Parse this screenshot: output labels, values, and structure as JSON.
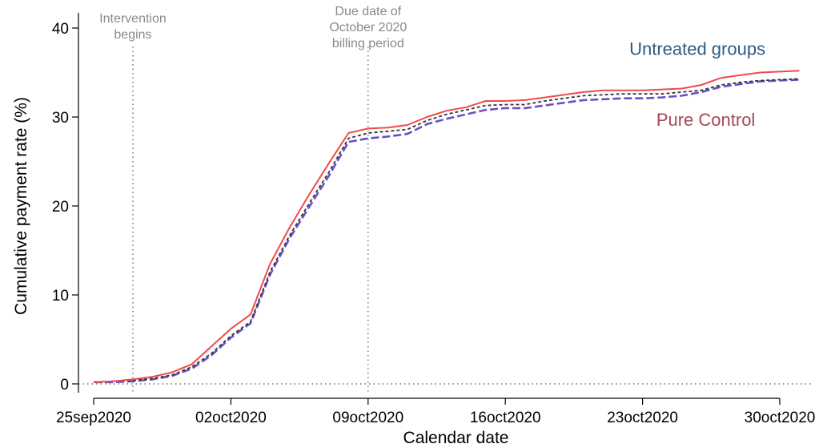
{
  "chart_data": {
    "type": "line",
    "xlabel": "Calendar date",
    "ylabel": "Cumulative payment rate (%)",
    "xlim": [
      "2020-09-25",
      "2020-10-31"
    ],
    "ylim": [
      0,
      40
    ],
    "x_ticks": [
      "2020-09-25",
      "2020-10-02",
      "2020-10-09",
      "2020-10-16",
      "2020-10-23",
      "2020-10-30"
    ],
    "x_tick_labels": [
      "25sep2020",
      "02oct2020",
      "09oct2020",
      "16oct2020",
      "23oct2020",
      "30oct2020"
    ],
    "y_ticks": [
      0,
      10,
      20,
      30,
      40
    ],
    "y_tick_labels": [
      "0",
      "10",
      "20",
      "30",
      "40"
    ],
    "grid": false,
    "reference_lines": [
      {
        "axis": "x",
        "x": "2020-09-27",
        "text_lines": [
          "Intervention",
          "begins"
        ],
        "style": "dotted"
      },
      {
        "axis": "x",
        "x": "2020-10-09",
        "text_lines": [
          "Due date of",
          "October 2020",
          "billing period"
        ],
        "style": "dotted"
      },
      {
        "axis": "y",
        "y": 0,
        "style": "dotted"
      }
    ],
    "series": [
      {
        "label": "Pure Control",
        "color": "#f04a4a",
        "dash": "solid",
        "x": [
          "2020-09-25",
          "2020-09-26",
          "2020-09-27",
          "2020-09-28",
          "2020-09-29",
          "2020-09-30",
          "2020-10-01",
          "2020-10-02",
          "2020-10-03",
          "2020-10-04",
          "2020-10-05",
          "2020-10-06",
          "2020-10-07",
          "2020-10-08",
          "2020-10-09",
          "2020-10-10",
          "2020-10-11",
          "2020-10-12",
          "2020-10-13",
          "2020-10-14",
          "2020-10-15",
          "2020-10-16",
          "2020-10-17",
          "2020-10-18",
          "2020-10-19",
          "2020-10-20",
          "2020-10-21",
          "2020-10-22",
          "2020-10-23",
          "2020-10-24",
          "2020-10-25",
          "2020-10-26",
          "2020-10-27",
          "2020-10-28",
          "2020-10-29",
          "2020-10-30",
          "2020-10-31"
        ],
        "values": [
          0.2,
          0.3,
          0.5,
          0.8,
          1.3,
          2.2,
          4.2,
          6.2,
          7.8,
          13.5,
          17.6,
          21.3,
          24.8,
          28.2,
          28.7,
          28.8,
          29.1,
          30.0,
          30.7,
          31.1,
          31.8,
          31.8,
          31.9,
          32.2,
          32.5,
          32.8,
          33.0,
          33.0,
          33.0,
          33.1,
          33.2,
          33.6,
          34.4,
          34.7,
          35.0,
          35.1,
          35.2
        ]
      },
      {
        "label": "",
        "color": "#333333",
        "dash": "short-dash",
        "x": [
          "2020-09-25",
          "2020-09-26",
          "2020-09-27",
          "2020-09-28",
          "2020-09-29",
          "2020-09-30",
          "2020-10-01",
          "2020-10-02",
          "2020-10-03",
          "2020-10-04",
          "2020-10-05",
          "2020-10-06",
          "2020-10-07",
          "2020-10-08",
          "2020-10-09",
          "2020-10-10",
          "2020-10-11",
          "2020-10-12",
          "2020-10-13",
          "2020-10-14",
          "2020-10-15",
          "2020-10-16",
          "2020-10-17",
          "2020-10-18",
          "2020-10-19",
          "2020-10-20",
          "2020-10-21",
          "2020-10-22",
          "2020-10-23",
          "2020-10-24",
          "2020-10-25",
          "2020-10-26",
          "2020-10-27",
          "2020-10-28",
          "2020-10-29",
          "2020-10-30",
          "2020-10-31"
        ],
        "values": [
          0.2,
          0.3,
          0.4,
          0.6,
          1.0,
          1.9,
          3.4,
          5.4,
          7.0,
          12.6,
          16.7,
          20.3,
          23.8,
          27.6,
          28.2,
          28.4,
          28.6,
          29.6,
          30.3,
          30.8,
          31.3,
          31.4,
          31.4,
          31.8,
          32.1,
          32.4,
          32.5,
          32.6,
          32.6,
          32.6,
          32.8,
          33.0,
          33.6,
          33.9,
          34.1,
          34.2,
          34.3
        ]
      },
      {
        "label": "Untreated groups",
        "color": "#6a4fc7",
        "dash": "long-dash",
        "x": [
          "2020-09-25",
          "2020-09-26",
          "2020-09-27",
          "2020-09-28",
          "2020-09-29",
          "2020-09-30",
          "2020-10-01",
          "2020-10-02",
          "2020-10-03",
          "2020-10-04",
          "2020-10-05",
          "2020-10-06",
          "2020-10-07",
          "2020-10-08",
          "2020-10-09",
          "2020-10-10",
          "2020-10-11",
          "2020-10-12",
          "2020-10-13",
          "2020-10-14",
          "2020-10-15",
          "2020-10-16",
          "2020-10-17",
          "2020-10-18",
          "2020-10-19",
          "2020-10-20",
          "2020-10-21",
          "2020-10-22",
          "2020-10-23",
          "2020-10-24",
          "2020-10-25",
          "2020-10-26",
          "2020-10-27",
          "2020-10-28",
          "2020-10-29",
          "2020-10-30",
          "2020-10-31"
        ],
        "values": [
          0.2,
          0.2,
          0.3,
          0.5,
          0.9,
          1.7,
          3.2,
          5.2,
          6.8,
          12.3,
          16.4,
          19.9,
          23.4,
          27.2,
          27.6,
          27.8,
          28.1,
          29.2,
          29.8,
          30.3,
          30.8,
          31.0,
          31.0,
          31.3,
          31.6,
          31.9,
          32.0,
          32.1,
          32.1,
          32.2,
          32.4,
          32.8,
          33.4,
          33.7,
          34.0,
          34.1,
          34.2
        ]
      }
    ],
    "annotations": [
      {
        "text": "Untreated groups",
        "x": "2020-10-24",
        "y": 37,
        "color": "#2e5b80"
      },
      {
        "text": "Pure Control",
        "x": "2020-10-25",
        "y": 29,
        "color": "#a34a55"
      }
    ]
  }
}
